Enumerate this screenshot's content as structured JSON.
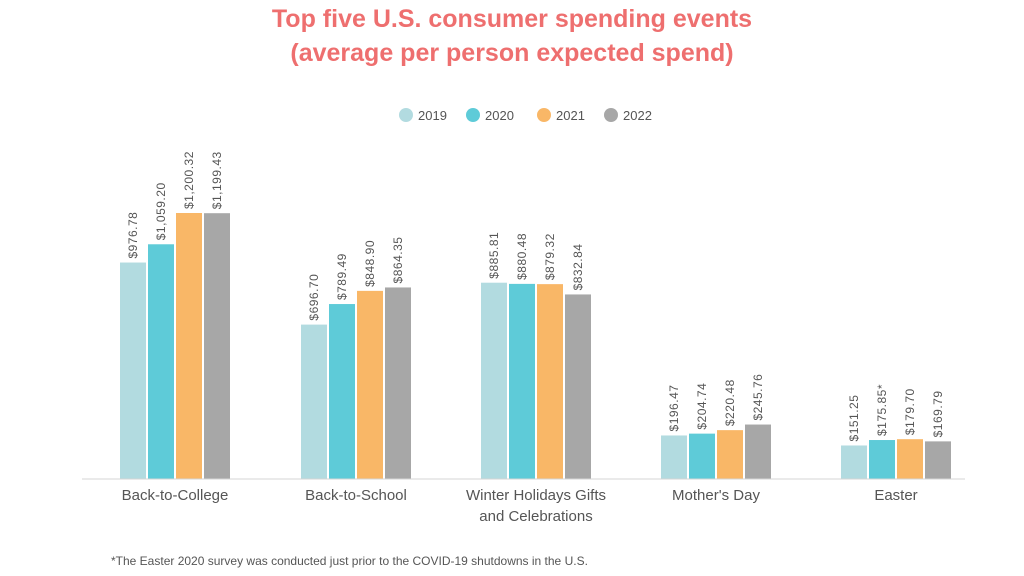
{
  "title_lines": [
    "Top five U.S. consumer spending events",
    "(average per person expected spend)"
  ],
  "footnote": "*The Easter 2020 survey was conducted just prior to the COVID-19 shutdowns in the U.S.",
  "chart_data": {
    "type": "bar",
    "title": "Top five U.S. consumer spending events (average per person expected spend)",
    "categories": [
      [
        "Back-to-College"
      ],
      [
        "Back-to-School"
      ],
      [
        "Winter Holidays Gifts",
        "and Celebrations"
      ],
      [
        "Mother's Day"
      ],
      [
        "Easter"
      ]
    ],
    "series": [
      {
        "name": "2019",
        "color": "#b2dbe0",
        "values": [
          976.78,
          696.7,
          885.81,
          196.47,
          151.25
        ],
        "labels": [
          "$976.78",
          "$696.70",
          "$885.81",
          "$196.47",
          "$151.25"
        ]
      },
      {
        "name": "2020",
        "color": "#5ecbd8",
        "values": [
          1059.2,
          789.49,
          880.48,
          204.74,
          175.85
        ],
        "labels": [
          "$1,059.20",
          "$789.49",
          "$880.48",
          "$204.74",
          "$175.85*"
        ]
      },
      {
        "name": "2021",
        "color": "#f9b767",
        "values": [
          1200.32,
          848.9,
          879.32,
          220.48,
          179.7
        ],
        "labels": [
          "$1,200.32",
          "$848.90",
          "$879.32",
          "$220.48",
          "$179.70"
        ]
      },
      {
        "name": "2022",
        "color": "#a7a7a7",
        "values": [
          1199.43,
          864.35,
          832.84,
          245.76,
          169.79
        ],
        "labels": [
          "$1,199.43",
          "$864.35",
          "$832.84",
          "$245.76",
          "$169.79"
        ]
      }
    ],
    "ylim": [
      0,
      1200.32
    ],
    "legend_position": "top-center",
    "grid": false
  }
}
